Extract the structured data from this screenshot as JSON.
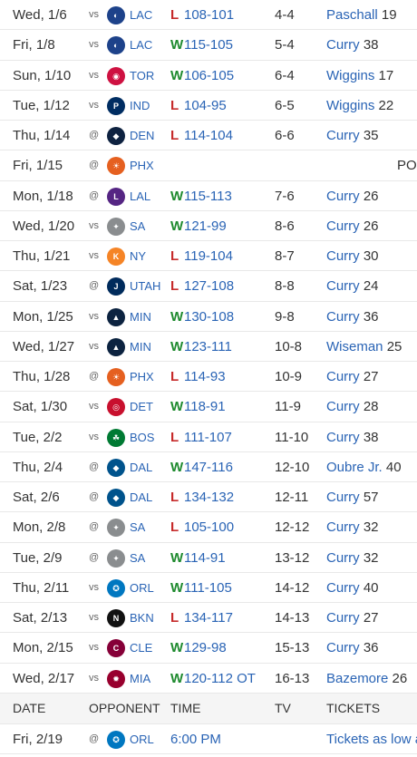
{
  "games": [
    {
      "date": "Wed, 1/6",
      "ha": "vs",
      "team": "LAC",
      "logo_color": "#1d428a",
      "logo_text": "◐",
      "result": "L",
      "score": "108-101",
      "record": "4-4",
      "leader": "Paschall",
      "pts": "19"
    },
    {
      "date": "Fri, 1/8",
      "ha": "vs",
      "team": "LAC",
      "logo_color": "#1d428a",
      "logo_text": "◐",
      "result": "W",
      "score": "115-105",
      "record": "5-4",
      "leader": "Curry",
      "pts": "38"
    },
    {
      "date": "Sun, 1/10",
      "ha": "vs",
      "team": "TOR",
      "logo_color": "#ce1141",
      "logo_text": "◉",
      "result": "W",
      "score": "106-105",
      "record": "6-4",
      "leader": "Wiggins",
      "pts": "17"
    },
    {
      "date": "Tue, 1/12",
      "ha": "vs",
      "team": "IND",
      "logo_color": "#002d62",
      "logo_text": "P",
      "result": "L",
      "score": "104-95",
      "record": "6-5",
      "leader": "Wiggins",
      "pts": "22"
    },
    {
      "date": "Thu, 1/14",
      "ha": "@",
      "team": "DEN",
      "logo_color": "#0e2240",
      "logo_text": "◆",
      "result": "L",
      "score": "114-104",
      "record": "6-6",
      "leader": "Curry",
      "pts": "35"
    },
    {
      "date": "Fri, 1/15",
      "ha": "@",
      "team": "PHX",
      "logo_color": "#e56020",
      "logo_text": "☀",
      "result": "",
      "score": "",
      "record": "",
      "leader": "",
      "pts": "",
      "note": "PO"
    },
    {
      "date": "Mon, 1/18",
      "ha": "@",
      "team": "LAL",
      "logo_color": "#552583",
      "logo_text": "L",
      "result": "W",
      "score": "115-113",
      "record": "7-6",
      "leader": "Curry",
      "pts": "26"
    },
    {
      "date": "Wed, 1/20",
      "ha": "vs",
      "team": "SA",
      "logo_color": "#8a8d8f",
      "logo_text": "✦",
      "result": "W",
      "score": "121-99",
      "record": "8-6",
      "leader": "Curry",
      "pts": "26"
    },
    {
      "date": "Thu, 1/21",
      "ha": "vs",
      "team": "NY",
      "logo_color": "#f58426",
      "logo_text": "K",
      "result": "L",
      "score": "119-104",
      "record": "8-7",
      "leader": "Curry",
      "pts": "30"
    },
    {
      "date": "Sat, 1/23",
      "ha": "@",
      "team": "UTAH",
      "logo_color": "#002b5c",
      "logo_text": "J",
      "result": "L",
      "score": "127-108",
      "record": "8-8",
      "leader": "Curry",
      "pts": "24"
    },
    {
      "date": "Mon, 1/25",
      "ha": "vs",
      "team": "MIN",
      "logo_color": "#0c2340",
      "logo_text": "▲",
      "result": "W",
      "score": "130-108",
      "record": "9-8",
      "leader": "Curry",
      "pts": "36"
    },
    {
      "date": "Wed, 1/27",
      "ha": "vs",
      "team": "MIN",
      "logo_color": "#0c2340",
      "logo_text": "▲",
      "result": "W",
      "score": "123-111",
      "record": "10-8",
      "leader": "Wiseman",
      "pts": "25"
    },
    {
      "date": "Thu, 1/28",
      "ha": "@",
      "team": "PHX",
      "logo_color": "#e56020",
      "logo_text": "☀",
      "result": "L",
      "score": "114-93",
      "record": "10-9",
      "leader": "Curry",
      "pts": "27"
    },
    {
      "date": "Sat, 1/30",
      "ha": "vs",
      "team": "DET",
      "logo_color": "#c8102e",
      "logo_text": "◎",
      "result": "W",
      "score": "118-91",
      "record": "11-9",
      "leader": "Curry",
      "pts": "28"
    },
    {
      "date": "Tue, 2/2",
      "ha": "vs",
      "team": "BOS",
      "logo_color": "#007a33",
      "logo_text": "☘",
      "result": "L",
      "score": "111-107",
      "record": "11-10",
      "leader": "Curry",
      "pts": "38"
    },
    {
      "date": "Thu, 2/4",
      "ha": "@",
      "team": "DAL",
      "logo_color": "#00538c",
      "logo_text": "◆",
      "result": "W",
      "score": "147-116",
      "record": "12-10",
      "leader": "Oubre Jr.",
      "pts": "40"
    },
    {
      "date": "Sat, 2/6",
      "ha": "@",
      "team": "DAL",
      "logo_color": "#00538c",
      "logo_text": "◆",
      "result": "L",
      "score": "134-132",
      "record": "12-11",
      "leader": "Curry",
      "pts": "57"
    },
    {
      "date": "Mon, 2/8",
      "ha": "@",
      "team": "SA",
      "logo_color": "#8a8d8f",
      "logo_text": "✦",
      "result": "L",
      "score": "105-100",
      "record": "12-12",
      "leader": "Curry",
      "pts": "32"
    },
    {
      "date": "Tue, 2/9",
      "ha": "@",
      "team": "SA",
      "logo_color": "#8a8d8f",
      "logo_text": "✦",
      "result": "W",
      "score": "114-91",
      "record": "13-12",
      "leader": "Curry",
      "pts": "32"
    },
    {
      "date": "Thu, 2/11",
      "ha": "vs",
      "team": "ORL",
      "logo_color": "#0077c0",
      "logo_text": "✪",
      "result": "W",
      "score": "111-105",
      "record": "14-12",
      "leader": "Curry",
      "pts": "40"
    },
    {
      "date": "Sat, 2/13",
      "ha": "vs",
      "team": "BKN",
      "logo_color": "#111111",
      "logo_text": "N",
      "result": "L",
      "score": "134-117",
      "record": "14-13",
      "leader": "Curry",
      "pts": "27"
    },
    {
      "date": "Mon, 2/15",
      "ha": "vs",
      "team": "CLE",
      "logo_color": "#860038",
      "logo_text": "C",
      "result": "W",
      "score": "129-98",
      "record": "15-13",
      "leader": "Curry",
      "pts": "36"
    },
    {
      "date": "Wed, 2/17",
      "ha": "vs",
      "team": "MIA",
      "logo_color": "#98002e",
      "logo_text": "✹",
      "result": "W",
      "score": "120-112 OT",
      "record": "16-13",
      "leader": "Bazemore",
      "pts": "26"
    }
  ],
  "upcoming_header": {
    "date": "DATE",
    "opponent": "OPPONENT",
    "time": "TIME",
    "tv": "TV",
    "tickets": "TICKETS"
  },
  "upcoming": [
    {
      "date": "Fri, 2/19",
      "ha": "@",
      "team": "ORL",
      "logo_color": "#0077c0",
      "logo_text": "✪",
      "time": "6:00 PM",
      "tickets": "Tickets as low a"
    }
  ]
}
